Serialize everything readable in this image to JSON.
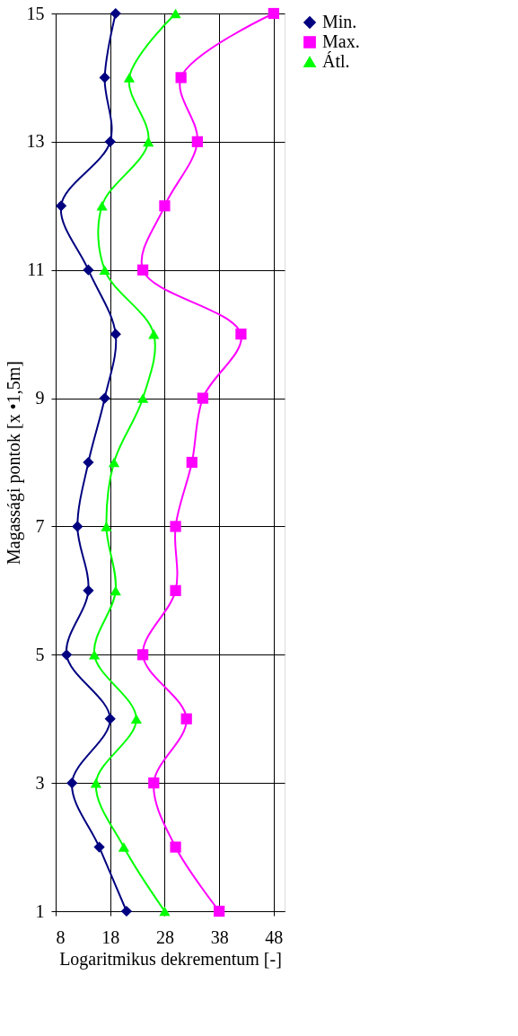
{
  "chart_data": {
    "type": "line",
    "orientation": "horizontal",
    "xlabel": "Logaritmikus dekrementum [-]",
    "ylabel": "Magassági pontok [x •1,5m]",
    "x": [
      1,
      2,
      3,
      4,
      5,
      6,
      7,
      8,
      9,
      10,
      11,
      12,
      13,
      14,
      15
    ],
    "series": [
      {
        "name": "Min.",
        "color": "#000080",
        "marker": "diamond",
        "values": [
          21,
          16,
          11,
          18,
          10,
          14,
          12,
          14,
          17,
          19,
          14,
          9,
          18,
          17,
          19
        ]
      },
      {
        "name": "Max.",
        "color": "#ff00ff",
        "marker": "square",
        "values": [
          38,
          30,
          26,
          32,
          24,
          30,
          30,
          33,
          35,
          42,
          24,
          28,
          34,
          31,
          48
        ]
      },
      {
        "name": "Átl.",
        "color": "#00ff00",
        "marker": "triangle",
        "values": [
          28,
          20.5,
          15.4,
          22.8,
          15.1,
          19,
          17.3,
          18.7,
          24,
          26,
          17,
          16.5,
          25,
          21.5,
          30
        ]
      }
    ],
    "xlim": [
      8,
      50
    ],
    "xticks": [
      8,
      18,
      28,
      38,
      48
    ],
    "ylim": [
      1,
      15
    ],
    "yticks": [
      1,
      3,
      5,
      7,
      9,
      11,
      13,
      15
    ],
    "grid": true,
    "legend": "right",
    "line_style": "solid"
  }
}
